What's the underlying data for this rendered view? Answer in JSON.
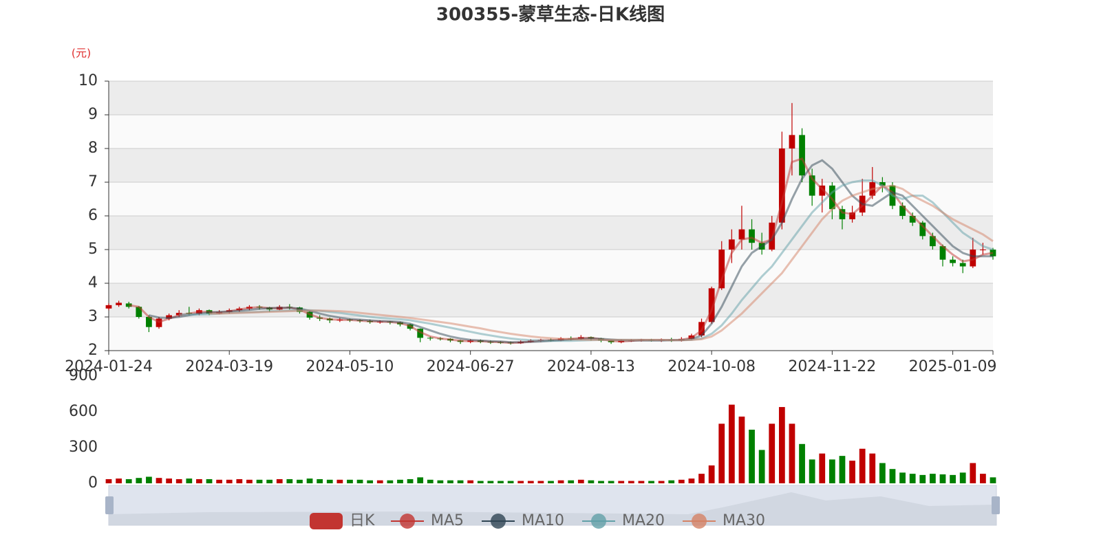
{
  "chart_data": {
    "type": "candlestick",
    "title": "300355-蒙草生态-日K线图",
    "y_unit": "(元)",
    "categories": [
      "2024-01-24",
      null,
      null,
      null,
      null,
      null,
      null,
      null,
      null,
      null,
      null,
      null,
      "2024-03-19",
      null,
      null,
      null,
      null,
      null,
      null,
      null,
      null,
      null,
      null,
      null,
      "2024-05-10",
      null,
      null,
      null,
      null,
      null,
      null,
      null,
      null,
      null,
      null,
      null,
      "2024-06-27",
      null,
      null,
      null,
      null,
      null,
      null,
      null,
      null,
      null,
      null,
      null,
      "2024-08-13",
      null,
      null,
      null,
      null,
      null,
      null,
      null,
      null,
      null,
      null,
      null,
      "2024-10-08",
      null,
      null,
      null,
      null,
      null,
      null,
      null,
      null,
      null,
      null,
      null,
      "2024-11-22",
      null,
      null,
      null,
      null,
      null,
      null,
      null,
      null,
      null,
      null,
      null,
      "2025-01-09",
      null,
      null,
      null,
      null
    ],
    "candles": {
      "name": "日K",
      "color": "#c23531",
      "up_color": "#c00000",
      "down_color": "#008000",
      "values": [
        [
          3.25,
          3.35,
          3.2,
          3.4
        ],
        [
          3.35,
          3.42,
          3.3,
          3.48
        ],
        [
          3.4,
          3.3,
          3.25,
          3.45
        ],
        [
          3.3,
          3.0,
          2.95,
          3.32
        ],
        [
          3.0,
          2.7,
          2.55,
          3.05
        ],
        [
          2.7,
          2.95,
          2.65,
          3.0
        ],
        [
          2.95,
          3.05,
          2.9,
          3.1
        ],
        [
          3.05,
          3.12,
          3.0,
          3.2
        ],
        [
          3.12,
          3.1,
          3.05,
          3.3
        ],
        [
          3.1,
          3.2,
          3.05,
          3.25
        ],
        [
          3.2,
          3.1,
          3.05,
          3.22
        ],
        [
          3.1,
          3.15,
          3.08,
          3.2
        ],
        [
          3.15,
          3.2,
          3.1,
          3.25
        ],
        [
          3.2,
          3.25,
          3.15,
          3.3
        ],
        [
          3.25,
          3.3,
          3.2,
          3.35
        ],
        [
          3.3,
          3.28,
          3.22,
          3.35
        ],
        [
          3.28,
          3.22,
          3.15,
          3.3
        ],
        [
          3.22,
          3.3,
          3.2,
          3.35
        ],
        [
          3.3,
          3.28,
          3.22,
          3.38
        ],
        [
          3.28,
          3.15,
          3.1,
          3.3
        ],
        [
          3.15,
          2.98,
          2.92,
          3.18
        ],
        [
          2.98,
          2.95,
          2.88,
          3.05
        ],
        [
          2.95,
          2.9,
          2.82,
          2.98
        ],
        [
          2.9,
          2.92,
          2.85,
          2.97
        ],
        [
          2.92,
          2.9,
          2.85,
          2.95
        ],
        [
          2.9,
          2.88,
          2.83,
          2.93
        ],
        [
          2.88,
          2.85,
          2.8,
          2.92
        ],
        [
          2.85,
          2.86,
          2.8,
          2.9
        ],
        [
          2.86,
          2.84,
          2.78,
          2.88
        ],
        [
          2.84,
          2.78,
          2.72,
          2.86
        ],
        [
          2.78,
          2.65,
          2.6,
          2.8
        ],
        [
          2.65,
          2.38,
          2.25,
          2.66
        ],
        [
          2.38,
          2.36,
          2.3,
          2.42
        ],
        [
          2.36,
          2.35,
          2.3,
          2.4
        ],
        [
          2.35,
          2.3,
          2.25,
          2.37
        ],
        [
          2.3,
          2.26,
          2.2,
          2.32
        ],
        [
          2.26,
          2.3,
          2.22,
          2.34
        ],
        [
          2.3,
          2.26,
          2.22,
          2.33
        ],
        [
          2.26,
          2.25,
          2.2,
          2.3
        ],
        [
          2.25,
          2.24,
          2.2,
          2.28
        ],
        [
          2.24,
          2.22,
          2.18,
          2.27
        ],
        [
          2.22,
          2.26,
          2.2,
          2.3
        ],
        [
          2.26,
          2.3,
          2.24,
          2.34
        ],
        [
          2.3,
          2.32,
          2.26,
          2.35
        ],
        [
          2.32,
          2.3,
          2.27,
          2.36
        ],
        [
          2.3,
          2.36,
          2.28,
          2.4
        ],
        [
          2.36,
          2.35,
          2.3,
          2.42
        ],
        [
          2.35,
          2.4,
          2.32,
          2.46
        ],
        [
          2.4,
          2.36,
          2.3,
          2.42
        ],
        [
          2.36,
          2.3,
          2.25,
          2.38
        ],
        [
          2.3,
          2.25,
          2.2,
          2.32
        ],
        [
          2.25,
          2.3,
          2.22,
          2.33
        ],
        [
          2.3,
          2.3,
          2.26,
          2.34
        ],
        [
          2.3,
          2.32,
          2.27,
          2.35
        ],
        [
          2.32,
          2.3,
          2.27,
          2.35
        ],
        [
          2.3,
          2.32,
          2.26,
          2.36
        ],
        [
          2.32,
          2.3,
          2.26,
          2.38
        ],
        [
          2.3,
          2.35,
          2.27,
          2.4
        ],
        [
          2.35,
          2.45,
          2.32,
          2.5
        ],
        [
          2.45,
          2.85,
          2.4,
          2.95
        ],
        [
          2.85,
          3.85,
          2.8,
          3.9
        ],
        [
          3.85,
          5.0,
          3.8,
          5.25
        ],
        [
          5.0,
          5.3,
          4.6,
          5.6
        ],
        [
          5.3,
          5.6,
          5.0,
          6.3
        ],
        [
          5.6,
          5.2,
          5.0,
          5.9
        ],
        [
          5.2,
          5.0,
          4.85,
          5.5
        ],
        [
          5.0,
          5.8,
          4.95,
          6.0
        ],
        [
          5.8,
          8.0,
          5.6,
          8.5
        ],
        [
          8.0,
          8.4,
          7.2,
          9.35
        ],
        [
          8.4,
          7.2,
          7.0,
          8.6
        ],
        [
          7.2,
          6.6,
          6.3,
          7.4
        ],
        [
          6.6,
          6.9,
          6.1,
          7.1
        ],
        [
          6.9,
          6.2,
          5.9,
          7.0
        ],
        [
          6.2,
          5.9,
          5.6,
          6.3
        ],
        [
          5.9,
          6.1,
          5.8,
          6.3
        ],
        [
          6.1,
          6.6,
          6.0,
          7.1
        ],
        [
          6.6,
          7.0,
          6.5,
          7.45
        ],
        [
          7.0,
          6.9,
          6.7,
          7.15
        ],
        [
          6.9,
          6.3,
          6.2,
          7.0
        ],
        [
          6.3,
          6.0,
          5.9,
          6.4
        ],
        [
          6.0,
          5.8,
          5.7,
          6.1
        ],
        [
          5.8,
          5.4,
          5.3,
          5.85
        ],
        [
          5.4,
          5.1,
          5.0,
          5.5
        ],
        [
          5.1,
          4.7,
          4.5,
          5.15
        ],
        [
          4.7,
          4.6,
          4.5,
          4.8
        ],
        [
          4.6,
          4.5,
          4.3,
          4.7
        ],
        [
          4.5,
          5.0,
          4.45,
          5.35
        ],
        [
          5.0,
          5.0,
          4.85,
          5.2
        ],
        [
          5.0,
          4.8,
          4.7,
          5.05
        ]
      ]
    },
    "ma": [
      {
        "name": "MA5",
        "color": "#c23531",
        "values": [
          null,
          null,
          3.35,
          3.3,
          3.0,
          2.85,
          2.95,
          3.05,
          3.1,
          3.15,
          3.15,
          3.12,
          3.17,
          3.22,
          3.27,
          3.29,
          3.26,
          3.26,
          3.28,
          3.22,
          3.08,
          2.97,
          2.93,
          2.91,
          2.91,
          2.89,
          2.87,
          2.86,
          2.85,
          2.82,
          2.73,
          2.55,
          2.42,
          2.36,
          2.33,
          2.29,
          2.28,
          2.28,
          2.26,
          2.25,
          2.23,
          2.24,
          2.27,
          2.3,
          2.31,
          2.33,
          2.35,
          2.37,
          2.38,
          2.34,
          2.29,
          2.27,
          2.29,
          2.31,
          2.31,
          2.31,
          2.31,
          2.32,
          2.38,
          2.6,
          3.2,
          4.1,
          4.9,
          5.3,
          5.35,
          5.2,
          5.3,
          6.4,
          7.6,
          7.7,
          7.1,
          6.8,
          6.5,
          6.1,
          6.05,
          6.3,
          6.6,
          6.9,
          6.7,
          6.3,
          6.0,
          5.7,
          5.4,
          5.1,
          4.85,
          4.65,
          4.7,
          4.85,
          4.9
        ]
      },
      {
        "name": "MA10",
        "color": "#2f4554",
        "values": [
          null,
          null,
          null,
          null,
          3.05,
          2.98,
          2.97,
          3.0,
          3.05,
          3.1,
          3.13,
          3.15,
          3.16,
          3.18,
          3.21,
          3.24,
          3.26,
          3.27,
          3.27,
          3.25,
          3.18,
          3.1,
          3.03,
          2.98,
          2.94,
          2.92,
          2.9,
          2.88,
          2.87,
          2.85,
          2.8,
          2.7,
          2.6,
          2.5,
          2.42,
          2.36,
          2.32,
          2.3,
          2.28,
          2.27,
          2.25,
          2.25,
          2.26,
          2.27,
          2.29,
          2.31,
          2.33,
          2.35,
          2.36,
          2.35,
          2.33,
          2.31,
          2.3,
          2.3,
          2.3,
          2.3,
          2.31,
          2.31,
          2.34,
          2.45,
          2.8,
          3.3,
          3.9,
          4.5,
          4.9,
          5.1,
          5.3,
          5.8,
          6.5,
          7.1,
          7.5,
          7.65,
          7.4,
          7.0,
          6.6,
          6.35,
          6.3,
          6.5,
          6.7,
          6.6,
          6.3,
          6.0,
          5.7,
          5.4,
          5.1,
          4.9,
          4.8,
          4.8,
          4.8
        ]
      },
      {
        "name": "MA20",
        "color": "#61a0a8",
        "values": [
          null,
          null,
          null,
          null,
          null,
          null,
          null,
          3.08,
          3.07,
          3.07,
          3.08,
          3.1,
          3.12,
          3.13,
          3.14,
          3.15,
          3.17,
          3.18,
          3.19,
          3.2,
          3.2,
          3.18,
          3.15,
          3.12,
          3.08,
          3.04,
          3.0,
          2.97,
          2.95,
          2.93,
          2.9,
          2.85,
          2.8,
          2.74,
          2.68,
          2.62,
          2.56,
          2.5,
          2.45,
          2.4,
          2.36,
          2.33,
          2.31,
          2.3,
          2.29,
          2.29,
          2.29,
          2.3,
          2.31,
          2.32,
          2.32,
          2.32,
          2.32,
          2.32,
          2.31,
          2.31,
          2.31,
          2.31,
          2.32,
          2.36,
          2.5,
          2.75,
          3.1,
          3.5,
          3.85,
          4.2,
          4.5,
          4.9,
          5.3,
          5.7,
          6.1,
          6.4,
          6.7,
          6.9,
          7.0,
          7.05,
          7.05,
          6.9,
          6.6,
          6.5,
          6.6,
          6.6,
          6.4,
          6.1,
          5.8,
          5.5,
          5.3,
          5.1,
          5.0
        ]
      },
      {
        "name": "MA30",
        "color": "#d48265",
        "values": [
          null,
          null,
          null,
          null,
          null,
          null,
          null,
          null,
          null,
          null,
          3.1,
          3.1,
          3.11,
          3.12,
          3.13,
          3.14,
          3.15,
          3.16,
          3.17,
          3.18,
          3.19,
          3.19,
          3.18,
          3.17,
          3.15,
          3.12,
          3.09,
          3.06,
          3.03,
          3.0,
          2.97,
          2.93,
          2.89,
          2.85,
          2.81,
          2.76,
          2.71,
          2.66,
          2.6,
          2.55,
          2.5,
          2.46,
          2.42,
          2.39,
          2.37,
          2.35,
          2.34,
          2.33,
          2.32,
          2.32,
          2.32,
          2.32,
          2.32,
          2.32,
          2.32,
          2.32,
          2.31,
          2.31,
          2.32,
          2.34,
          2.42,
          2.6,
          2.85,
          3.1,
          3.4,
          3.7,
          4.0,
          4.3,
          4.7,
          5.1,
          5.5,
          5.9,
          6.2,
          6.45,
          6.6,
          6.7,
          6.8,
          6.85,
          6.9,
          6.8,
          6.6,
          6.45,
          6.3,
          6.1,
          5.9,
          5.75,
          5.6,
          5.45,
          5.25
        ]
      }
    ],
    "ylim": [
      2,
      10
    ],
    "yticks": [
      2,
      3,
      4,
      5,
      6,
      7,
      8,
      9,
      10
    ],
    "volume": {
      "values": [
        35,
        40,
        35,
        45,
        55,
        45,
        40,
        35,
        40,
        35,
        35,
        30,
        30,
        35,
        30,
        30,
        30,
        35,
        35,
        30,
        40,
        35,
        30,
        30,
        30,
        30,
        25,
        25,
        25,
        30,
        35,
        50,
        30,
        25,
        25,
        25,
        25,
        20,
        20,
        20,
        20,
        20,
        20,
        20,
        20,
        25,
        25,
        30,
        25,
        20,
        20,
        20,
        20,
        20,
        20,
        20,
        25,
        30,
        40,
        80,
        150,
        500,
        660,
        560,
        450,
        280,
        500,
        640,
        500,
        330,
        200,
        250,
        200,
        230,
        190,
        290,
        250,
        170,
        120,
        90,
        80,
        70,
        80,
        75,
        70,
        90,
        170,
        80,
        50
      ],
      "ylim": [
        0,
        900
      ],
      "yticks": [
        0,
        300,
        600,
        900
      ]
    }
  }
}
